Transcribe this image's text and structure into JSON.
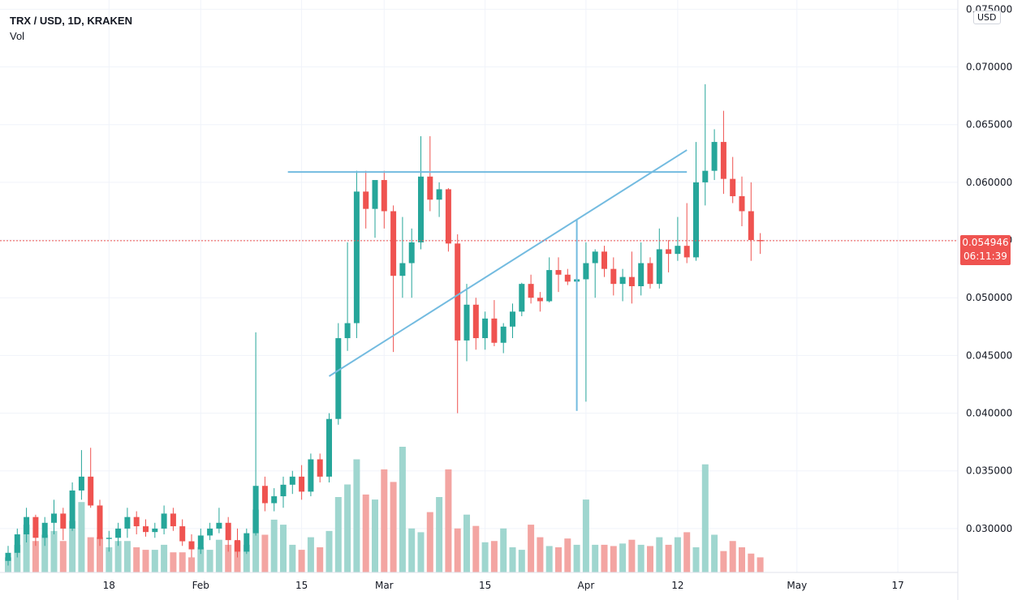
{
  "header": {
    "symbol": "TRX / USD, 1D, KRAKEN",
    "volume_label": "Vol",
    "currency": "USD"
  },
  "last_price": {
    "value": "0.054946",
    "countdown": "06:11:39",
    "color": "#ef5350"
  },
  "colors": {
    "up": "#26a69a",
    "down": "#ef5350",
    "up_volume": "#9fd6cf",
    "down_volume": "#f3a5a2",
    "drawing": "#73bbe0",
    "grid": "#f0f3fa"
  },
  "chart_data": {
    "type": "candlestick",
    "title": "TRX / USD, 1D, KRAKEN",
    "y_ticks": [
      "0.030000",
      "0.035000",
      "0.040000",
      "0.045000",
      "0.050000",
      "0.055000",
      "0.060000",
      "0.065000",
      "0.070000",
      "0.075000"
    ],
    "ylim": [
      0.0262,
      0.0758
    ],
    "x_ticks": [
      "18",
      "Feb",
      "15",
      "Mar",
      "15",
      "Apr",
      "12",
      "May",
      "17"
    ],
    "series": [
      {
        "name": "TRX / USD",
        "values": [
          [
            0.0272,
            0.0285,
            0.0268,
            0.0279
          ],
          [
            0.0279,
            0.03,
            0.0275,
            0.0295
          ],
          [
            0.0295,
            0.0318,
            0.0288,
            0.031
          ],
          [
            0.031,
            0.0312,
            0.0285,
            0.0292
          ],
          [
            0.0292,
            0.031,
            0.0285,
            0.0305
          ],
          [
            0.0305,
            0.0325,
            0.0295,
            0.0313
          ],
          [
            0.0313,
            0.0318,
            0.029,
            0.03
          ],
          [
            0.03,
            0.034,
            0.0298,
            0.0333
          ],
          [
            0.0333,
            0.0368,
            0.0325,
            0.0345
          ],
          [
            0.0345,
            0.037,
            0.0318,
            0.032
          ],
          [
            0.032,
            0.0325,
            0.0285,
            0.0291
          ],
          [
            0.0291,
            0.0298,
            0.028,
            0.0292
          ],
          [
            0.0292,
            0.0305,
            0.0285,
            0.03
          ],
          [
            0.03,
            0.0318,
            0.0292,
            0.031
          ],
          [
            0.031,
            0.0315,
            0.0295,
            0.0302
          ],
          [
            0.0302,
            0.0308,
            0.0293,
            0.0297
          ],
          [
            0.0297,
            0.0305,
            0.0292,
            0.03
          ],
          [
            0.03,
            0.032,
            0.0295,
            0.0313
          ],
          [
            0.0313,
            0.0318,
            0.0298,
            0.0302
          ],
          [
            0.0302,
            0.0308,
            0.0285,
            0.0289
          ],
          [
            0.0289,
            0.0295,
            0.0275,
            0.0282
          ],
          [
            0.0282,
            0.03,
            0.0278,
            0.0294
          ],
          [
            0.0294,
            0.0305,
            0.029,
            0.03
          ],
          [
            0.03,
            0.0318,
            0.0296,
            0.0305
          ],
          [
            0.0305,
            0.031,
            0.028,
            0.029
          ],
          [
            0.029,
            0.03,
            0.0275,
            0.028
          ],
          [
            0.028,
            0.03,
            0.0278,
            0.0296
          ],
          [
            0.0296,
            0.047,
            0.0294,
            0.0337
          ],
          [
            0.0337,
            0.0345,
            0.0315,
            0.0322
          ],
          [
            0.0322,
            0.0335,
            0.0315,
            0.0328
          ],
          [
            0.0328,
            0.0345,
            0.0318,
            0.0338
          ],
          [
            0.0338,
            0.035,
            0.033,
            0.0345
          ],
          [
            0.0345,
            0.0355,
            0.0325,
            0.0332
          ],
          [
            0.0332,
            0.0365,
            0.0328,
            0.036
          ],
          [
            0.036,
            0.0365,
            0.034,
            0.0345
          ],
          [
            0.0345,
            0.04,
            0.034,
            0.0395
          ],
          [
            0.0395,
            0.0478,
            0.039,
            0.0465
          ],
          [
            0.0465,
            0.0548,
            0.0454,
            0.0478
          ],
          [
            0.0478,
            0.061,
            0.0465,
            0.0592
          ],
          [
            0.0592,
            0.061,
            0.056,
            0.0577
          ],
          [
            0.0577,
            0.06,
            0.0552,
            0.0602
          ],
          [
            0.0602,
            0.061,
            0.056,
            0.0575
          ],
          [
            0.0575,
            0.058,
            0.0453,
            0.0519
          ],
          [
            0.0519,
            0.057,
            0.05,
            0.053
          ],
          [
            0.053,
            0.056,
            0.05,
            0.0548
          ],
          [
            0.0548,
            0.064,
            0.0542,
            0.0605
          ],
          [
            0.0605,
            0.064,
            0.0575,
            0.0585
          ],
          [
            0.0585,
            0.06,
            0.057,
            0.0594
          ],
          [
            0.0594,
            0.0595,
            0.054,
            0.0547
          ],
          [
            0.0547,
            0.0555,
            0.04,
            0.0463
          ],
          [
            0.0463,
            0.0512,
            0.0445,
            0.0494
          ],
          [
            0.0494,
            0.05,
            0.0455,
            0.0465
          ],
          [
            0.0465,
            0.0488,
            0.0455,
            0.0482
          ],
          [
            0.0482,
            0.0498,
            0.0458,
            0.0461
          ],
          [
            0.0461,
            0.0478,
            0.0452,
            0.0475
          ],
          [
            0.0475,
            0.0495,
            0.0465,
            0.0488
          ],
          [
            0.0488,
            0.0513,
            0.0484,
            0.0512
          ],
          [
            0.0512,
            0.052,
            0.0495,
            0.05
          ],
          [
            0.05,
            0.0505,
            0.0488,
            0.0497
          ],
          [
            0.0497,
            0.0535,
            0.0496,
            0.0524
          ],
          [
            0.0524,
            0.0535,
            0.0505,
            0.052
          ],
          [
            0.052,
            0.0525,
            0.0511,
            0.0514
          ],
          [
            0.0514,
            0.052,
            0.0505,
            0.0516
          ],
          [
            0.0516,
            0.0548,
            0.041,
            0.053
          ],
          [
            0.053,
            0.0542,
            0.05,
            0.054
          ],
          [
            0.054,
            0.0545,
            0.0518,
            0.0525
          ],
          [
            0.0525,
            0.0535,
            0.0502,
            0.0512
          ],
          [
            0.0512,
            0.0525,
            0.0497,
            0.0518
          ],
          [
            0.0518,
            0.054,
            0.0495,
            0.051
          ],
          [
            0.051,
            0.0548,
            0.0502,
            0.053
          ],
          [
            0.053,
            0.0535,
            0.0508,
            0.0512
          ],
          [
            0.0512,
            0.056,
            0.0508,
            0.0542
          ],
          [
            0.0542,
            0.055,
            0.0522,
            0.0538
          ],
          [
            0.0538,
            0.057,
            0.0532,
            0.0545
          ],
          [
            0.0545,
            0.0582,
            0.053,
            0.0535
          ],
          [
            0.0535,
            0.0635,
            0.0532,
            0.06
          ],
          [
            0.06,
            0.0685,
            0.058,
            0.061
          ],
          [
            0.061,
            0.0646,
            0.0602,
            0.0635
          ],
          [
            0.0635,
            0.0662,
            0.059,
            0.0603
          ],
          [
            0.0603,
            0.0622,
            0.0582,
            0.0588
          ],
          [
            0.0588,
            0.0605,
            0.0562,
            0.0575
          ],
          [
            0.0575,
            0.06,
            0.0532,
            0.055
          ],
          [
            0.055,
            0.0556,
            0.0538,
            0.0549
          ]
        ]
      }
    ],
    "volume_max": 1,
    "volumes": [
      0.12,
      0.22,
      0.38,
      0.25,
      0.3,
      0.33,
      0.25,
      0.41,
      0.56,
      0.28,
      0.28,
      0.2,
      0.25,
      0.25,
      0.2,
      0.18,
      0.18,
      0.22,
      0.16,
      0.16,
      0.12,
      0.2,
      0.18,
      0.26,
      0.22,
      0.25,
      0.22,
      0.5,
      0.3,
      0.42,
      0.38,
      0.22,
      0.18,
      0.28,
      0.2,
      0.33,
      0.6,
      0.7,
      0.9,
      0.62,
      0.58,
      0.82,
      0.72,
      1.0,
      0.35,
      0.32,
      0.48,
      0.6,
      0.82,
      0.35,
      0.46,
      0.37,
      0.24,
      0.25,
      0.35,
      0.2,
      0.18,
      0.38,
      0.28,
      0.21,
      0.2,
      0.27,
      0.22,
      0.58,
      0.22,
      0.22,
      0.21,
      0.23,
      0.26,
      0.22,
      0.21,
      0.28,
      0.22,
      0.28,
      0.32,
      0.2,
      0.86,
      0.3,
      0.17,
      0.25,
      0.2,
      0.15,
      0.12
    ],
    "x_labels_index": {
      "18": 11,
      "Feb": 21,
      "15": 32,
      "Mar": 41,
      "15b": 52,
      "Apr": 63,
      "12": 73,
      "May": 86,
      "17": 97
    },
    "drawings": [
      {
        "type": "horizontal_line",
        "y": 0.0609,
        "x_start_index": 30.5,
        "x_end_index": 74
      },
      {
        "type": "trendline",
        "x1_index": 35,
        "y1": 0.0432,
        "x2_index": 74,
        "y2": 0.0628
      },
      {
        "type": "vertical_line",
        "x_index": 62,
        "y1": 0.0568,
        "y2": 0.0402
      },
      {
        "type": "price_line",
        "y": 0.054946
      }
    ]
  }
}
